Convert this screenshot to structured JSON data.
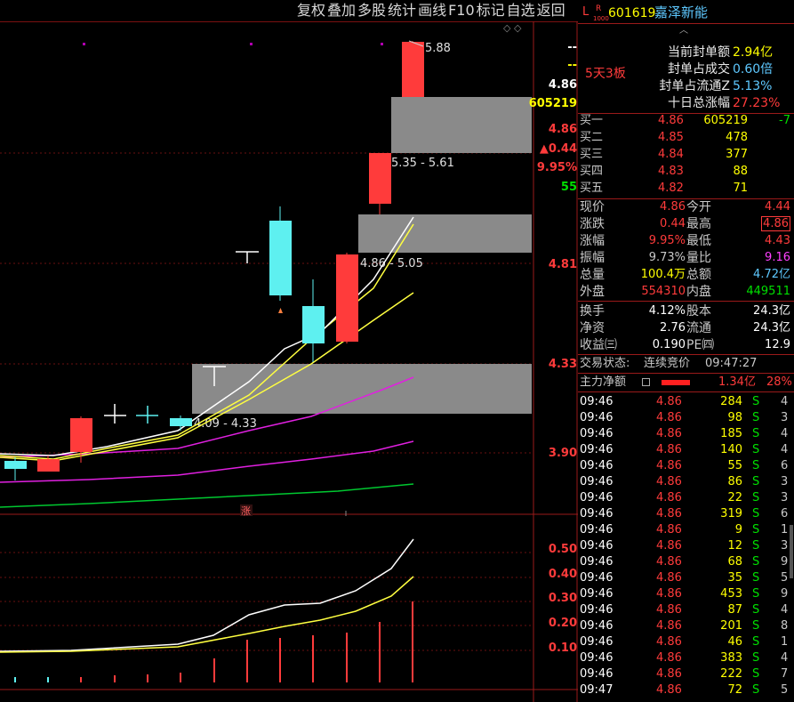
{
  "toolbar": [
    "复权",
    "叠加",
    "多股",
    "统计",
    "画线",
    "F10",
    "标记",
    "自选",
    "返回"
  ],
  "chart": {
    "price_high": "5.88",
    "zones": [
      "5.35 - 5.61",
      "4.86 - 5.05",
      "4.09 - 4.33"
    ],
    "marker_zhang": "涨",
    "right_axis": {
      "dash1": "--",
      "dash2": "--",
      "last_price": "4.86",
      "seal_volume": "605219",
      "price2": "4.86",
      "change": "▲0.44",
      "change_pct": "9.95%",
      "num55": "55",
      "level_481": "4.81",
      "level_433": "4.33",
      "level_390": "3.90"
    },
    "volume_axis": [
      "0.50",
      "0.40",
      "0.30",
      "0.20",
      "0.10"
    ]
  },
  "stock": {
    "flag_l": "L",
    "flag_r": "R",
    "flag_sub": "1000",
    "code": "601619",
    "name": "嘉泽新能",
    "board": "5天3板",
    "stats": [
      {
        "label": "当前封单额",
        "value": "2.94亿",
        "color": "#ffff00"
      },
      {
        "label": "封单占成交",
        "value": "0.60倍",
        "color": "#5ec8ff"
      },
      {
        "label": "封单占流通Z",
        "value": "5.13%",
        "color": "#5ec8ff"
      },
      {
        "label": "十日总涨幅",
        "value": "27.23%",
        "color": "#ff3b3b"
      }
    ]
  },
  "bids": [
    {
      "label": "买一",
      "price": "4.86",
      "vol": "605219",
      "chg": "-7"
    },
    {
      "label": "买二",
      "price": "4.85",
      "vol": "478",
      "chg": ""
    },
    {
      "label": "买三",
      "price": "4.84",
      "vol": "377",
      "chg": ""
    },
    {
      "label": "买四",
      "price": "4.83",
      "vol": "88",
      "chg": ""
    },
    {
      "label": "买五",
      "price": "4.82",
      "vol": "71",
      "chg": ""
    }
  ],
  "quote": [
    {
      "l1": "现价",
      "v1": "4.86",
      "c1": "#ff3b3b",
      "l2": "今开",
      "v2": "4.44",
      "c2": "#ff3b3b"
    },
    {
      "l1": "涨跌",
      "v1": "0.44",
      "c1": "#ff3b3b",
      "l2": "最高",
      "v2": "4.86",
      "c2": "#ff3b3b"
    },
    {
      "l1": "涨幅",
      "v1": "9.95%",
      "c1": "#ff3b3b",
      "l2": "最低",
      "v2": "4.43",
      "c2": "#ff3b3b"
    },
    {
      "l1": "振幅",
      "v1": "9.73%",
      "c1": "#c8c8c8",
      "l2": "量比",
      "v2": "9.16",
      "c2": "#ff40ff"
    },
    {
      "l1": "总量",
      "v1": "100.4万",
      "c1": "#ffff00",
      "l2": "总额",
      "v2": "4.72亿",
      "c2": "#5ec8ff"
    },
    {
      "l1": "外盘",
      "v1": "554310",
      "c1": "#ff3b3b",
      "l2": "内盘",
      "v2": "449511",
      "c2": "#00e000"
    }
  ],
  "fundamentals": [
    {
      "l1": "换手",
      "v1": "4.12%",
      "l2": "股本",
      "v2": "24.3亿"
    },
    {
      "l1": "净资",
      "v1": "2.76",
      "l2": "流通",
      "v2": "24.3亿"
    },
    {
      "l1": "收益㈢",
      "v1": "0.190",
      "l2": "PE㈣",
      "v2": "12.9"
    }
  ],
  "trade_status": {
    "label": "交易状态:",
    "value": "连续竞价",
    "time": "09:47:27"
  },
  "main_flow": {
    "label": "主力净额",
    "value": "1.34亿",
    "pct": "28%"
  },
  "ticks": [
    {
      "time": "09:46",
      "price": "4.86",
      "vol": "284",
      "side": "S",
      "n": "4"
    },
    {
      "time": "09:46",
      "price": "4.86",
      "vol": "98",
      "side": "S",
      "n": "3"
    },
    {
      "time": "09:46",
      "price": "4.86",
      "vol": "185",
      "side": "S",
      "n": "4"
    },
    {
      "time": "09:46",
      "price": "4.86",
      "vol": "140",
      "side": "S",
      "n": "4"
    },
    {
      "time": "09:46",
      "price": "4.86",
      "vol": "55",
      "side": "S",
      "n": "6"
    },
    {
      "time": "09:46",
      "price": "4.86",
      "vol": "86",
      "side": "S",
      "n": "3"
    },
    {
      "time": "09:46",
      "price": "4.86",
      "vol": "22",
      "side": "S",
      "n": "3"
    },
    {
      "time": "09:46",
      "price": "4.86",
      "vol": "319",
      "side": "S",
      "n": "6"
    },
    {
      "time": "09:46",
      "price": "4.86",
      "vol": "9",
      "side": "S",
      "n": "1"
    },
    {
      "time": "09:46",
      "price": "4.86",
      "vol": "12",
      "side": "S",
      "n": "3"
    },
    {
      "time": "09:46",
      "price": "4.86",
      "vol": "68",
      "side": "S",
      "n": "9"
    },
    {
      "time": "09:46",
      "price": "4.86",
      "vol": "35",
      "side": "S",
      "n": "5"
    },
    {
      "time": "09:46",
      "price": "4.86",
      "vol": "453",
      "side": "S",
      "n": "9"
    },
    {
      "time": "09:46",
      "price": "4.86",
      "vol": "87",
      "side": "S",
      "n": "4"
    },
    {
      "time": "09:46",
      "price": "4.86",
      "vol": "201",
      "side": "S",
      "n": "8"
    },
    {
      "time": "09:46",
      "price": "4.86",
      "vol": "46",
      "side": "S",
      "n": "1"
    },
    {
      "time": "09:46",
      "price": "4.86",
      "vol": "383",
      "side": "S",
      "n": "4"
    },
    {
      "time": "09:46",
      "price": "4.86",
      "vol": "222",
      "side": "S",
      "n": "7"
    },
    {
      "time": "09:47",
      "price": "4.86",
      "vol": "72",
      "side": "S",
      "n": "5"
    }
  ]
}
